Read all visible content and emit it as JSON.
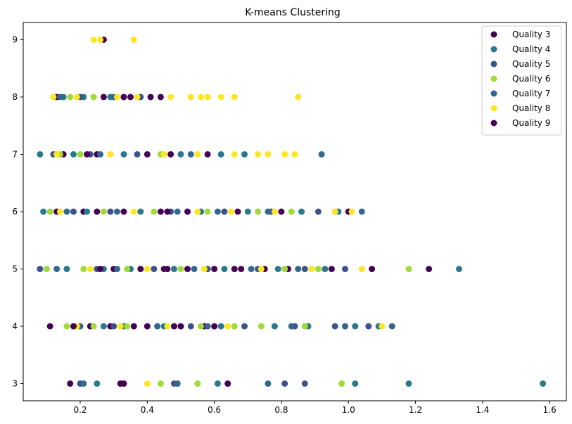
{
  "chart_data": {
    "type": "scatter",
    "title": "K-means Clustering",
    "xlabel": "",
    "ylabel": "",
    "xlim": [
      0.03,
      1.65
    ],
    "ylim": [
      2.7,
      9.3
    ],
    "x_ticks": [
      0.2,
      0.4,
      0.6,
      0.8,
      1.0,
      1.2,
      1.4,
      1.6
    ],
    "y_ticks": [
      3,
      4,
      5,
      6,
      7,
      8,
      9
    ],
    "grid": false,
    "legend_position": "top-right",
    "series": [
      {
        "name": "Quality 3",
        "color": "#440154",
        "points": [
          {
            "x": 0.17,
            "y": 3
          },
          {
            "x": 0.32,
            "y": 3
          },
          {
            "x": 0.33,
            "y": 3
          },
          {
            "x": 0.64,
            "y": 3
          },
          {
            "x": 0.11,
            "y": 4
          },
          {
            "x": 0.23,
            "y": 4
          },
          {
            "x": 0.29,
            "y": 4
          },
          {
            "x": 0.36,
            "y": 4
          },
          {
            "x": 0.4,
            "y": 4
          },
          {
            "x": 0.5,
            "y": 4
          },
          {
            "x": 0.57,
            "y": 4
          },
          {
            "x": 0.6,
            "y": 4
          },
          {
            "x": 0.3,
            "y": 5
          },
          {
            "x": 0.38,
            "y": 5
          },
          {
            "x": 0.45,
            "y": 5
          },
          {
            "x": 0.52,
            "y": 5
          },
          {
            "x": 0.6,
            "y": 5
          },
          {
            "x": 0.68,
            "y": 5
          },
          {
            "x": 0.75,
            "y": 5
          },
          {
            "x": 0.82,
            "y": 5
          },
          {
            "x": 0.95,
            "y": 5
          },
          {
            "x": 1.07,
            "y": 5
          },
          {
            "x": 1.24,
            "y": 5
          },
          {
            "x": 0.13,
            "y": 6
          },
          {
            "x": 0.21,
            "y": 6
          },
          {
            "x": 0.33,
            "y": 6
          },
          {
            "x": 0.44,
            "y": 6
          },
          {
            "x": 0.52,
            "y": 6
          },
          {
            "x": 0.67,
            "y": 6
          },
          {
            "x": 0.8,
            "y": 6
          },
          {
            "x": 1.0,
            "y": 6
          },
          {
            "x": 0.15,
            "y": 7
          },
          {
            "x": 0.25,
            "y": 7
          },
          {
            "x": 0.4,
            "y": 7
          },
          {
            "x": 0.47,
            "y": 7
          },
          {
            "x": 0.58,
            "y": 7
          },
          {
            "x": 0.13,
            "y": 8
          },
          {
            "x": 0.27,
            "y": 8
          },
          {
            "x": 0.35,
            "y": 8
          },
          {
            "x": 0.41,
            "y": 8
          },
          {
            "x": 0.44,
            "y": 8
          },
          {
            "x": 0.27,
            "y": 9
          }
        ]
      },
      {
        "name": "Quality 4",
        "color": "#2a788e",
        "points": [
          {
            "x": 0.25,
            "y": 3
          },
          {
            "x": 0.61,
            "y": 3
          },
          {
            "x": 1.02,
            "y": 3
          },
          {
            "x": 1.18,
            "y": 3
          },
          {
            "x": 1.58,
            "y": 3
          },
          {
            "x": 0.27,
            "y": 4
          },
          {
            "x": 0.33,
            "y": 4
          },
          {
            "x": 0.45,
            "y": 4
          },
          {
            "x": 0.62,
            "y": 4
          },
          {
            "x": 0.78,
            "y": 4
          },
          {
            "x": 0.88,
            "y": 4
          },
          {
            "x": 1.02,
            "y": 4
          },
          {
            "x": 1.09,
            "y": 4
          },
          {
            "x": 0.16,
            "y": 5
          },
          {
            "x": 0.27,
            "y": 5
          },
          {
            "x": 0.35,
            "y": 5
          },
          {
            "x": 0.48,
            "y": 5
          },
          {
            "x": 0.63,
            "y": 5
          },
          {
            "x": 0.79,
            "y": 5
          },
          {
            "x": 0.93,
            "y": 5
          },
          {
            "x": 1.33,
            "y": 5
          },
          {
            "x": 0.09,
            "y": 6
          },
          {
            "x": 0.22,
            "y": 6
          },
          {
            "x": 0.38,
            "y": 6
          },
          {
            "x": 0.56,
            "y": 6
          },
          {
            "x": 0.7,
            "y": 6
          },
          {
            "x": 0.86,
            "y": 6
          },
          {
            "x": 0.97,
            "y": 6
          },
          {
            "x": 0.08,
            "y": 7
          },
          {
            "x": 0.18,
            "y": 7
          },
          {
            "x": 0.33,
            "y": 7
          },
          {
            "x": 0.5,
            "y": 7
          },
          {
            "x": 0.62,
            "y": 7
          },
          {
            "x": 0.69,
            "y": 7
          },
          {
            "x": 0.15,
            "y": 8
          },
          {
            "x": 0.21,
            "y": 8
          },
          {
            "x": 0.29,
            "y": 8
          }
        ]
      },
      {
        "name": "Quality 5",
        "color": "#3b528b",
        "points": [
          {
            "x": 0.2,
            "y": 3
          },
          {
            "x": 0.48,
            "y": 3
          },
          {
            "x": 0.81,
            "y": 3
          },
          {
            "x": 0.87,
            "y": 3
          },
          {
            "x": 0.3,
            "y": 4
          },
          {
            "x": 0.53,
            "y": 4
          },
          {
            "x": 0.69,
            "y": 4
          },
          {
            "x": 0.84,
            "y": 4
          },
          {
            "x": 0.96,
            "y": 4
          },
          {
            "x": 1.06,
            "y": 4
          },
          {
            "x": 0.08,
            "y": 5
          },
          {
            "x": 0.25,
            "y": 5
          },
          {
            "x": 0.42,
            "y": 5
          },
          {
            "x": 0.58,
            "y": 5
          },
          {
            "x": 0.73,
            "y": 5
          },
          {
            "x": 0.87,
            "y": 5
          },
          {
            "x": 0.99,
            "y": 5
          },
          {
            "x": 0.18,
            "y": 6
          },
          {
            "x": 0.29,
            "y": 6
          },
          {
            "x": 0.47,
            "y": 6
          },
          {
            "x": 0.63,
            "y": 6
          },
          {
            "x": 0.77,
            "y": 6
          },
          {
            "x": 0.91,
            "y": 6
          },
          {
            "x": 0.12,
            "y": 7
          },
          {
            "x": 0.23,
            "y": 7
          },
          {
            "x": 0.37,
            "y": 7
          },
          {
            "x": 0.2,
            "y": 8
          },
          {
            "x": 0.38,
            "y": 8
          }
        ]
      },
      {
        "name": "Quality 6",
        "color": "#a0da39",
        "points": [
          {
            "x": 0.44,
            "y": 3
          },
          {
            "x": 0.55,
            "y": 3
          },
          {
            "x": 0.98,
            "y": 3
          },
          {
            "x": 0.16,
            "y": 4
          },
          {
            "x": 0.2,
            "y": 4
          },
          {
            "x": 0.24,
            "y": 4
          },
          {
            "x": 0.34,
            "y": 4
          },
          {
            "x": 0.56,
            "y": 4
          },
          {
            "x": 0.66,
            "y": 4
          },
          {
            "x": 0.74,
            "y": 4
          },
          {
            "x": 0.87,
            "y": 4
          },
          {
            "x": 0.1,
            "y": 5
          },
          {
            "x": 0.21,
            "y": 5
          },
          {
            "x": 0.34,
            "y": 5
          },
          {
            "x": 0.5,
            "y": 5
          },
          {
            "x": 0.66,
            "y": 5
          },
          {
            "x": 0.81,
            "y": 5
          },
          {
            "x": 0.91,
            "y": 5
          },
          {
            "x": 1.18,
            "y": 5
          },
          {
            "x": 0.11,
            "y": 6
          },
          {
            "x": 0.27,
            "y": 6
          },
          {
            "x": 0.42,
            "y": 6
          },
          {
            "x": 0.58,
            "y": 6
          },
          {
            "x": 0.73,
            "y": 6
          },
          {
            "x": 0.83,
            "y": 6
          },
          {
            "x": 0.14,
            "y": 7
          },
          {
            "x": 0.2,
            "y": 7
          },
          {
            "x": 0.44,
            "y": 7
          },
          {
            "x": 0.17,
            "y": 8
          },
          {
            "x": 0.24,
            "y": 8
          }
        ]
      },
      {
        "name": "Quality 7",
        "color": "#31688e",
        "points": [
          {
            "x": 0.21,
            "y": 3
          },
          {
            "x": 0.49,
            "y": 3
          },
          {
            "x": 0.76,
            "y": 3
          },
          {
            "x": 0.2,
            "y": 4
          },
          {
            "x": 0.43,
            "y": 4
          },
          {
            "x": 0.58,
            "y": 4
          },
          {
            "x": 0.83,
            "y": 4
          },
          {
            "x": 0.99,
            "y": 4
          },
          {
            "x": 1.13,
            "y": 4
          },
          {
            "x": 0.13,
            "y": 5
          },
          {
            "x": 0.31,
            "y": 5
          },
          {
            "x": 0.54,
            "y": 5
          },
          {
            "x": 0.71,
            "y": 5
          },
          {
            "x": 0.85,
            "y": 5
          },
          {
            "x": 0.16,
            "y": 6
          },
          {
            "x": 0.31,
            "y": 6
          },
          {
            "x": 0.49,
            "y": 6
          },
          {
            "x": 0.61,
            "y": 6
          },
          {
            "x": 0.76,
            "y": 6
          },
          {
            "x": 1.04,
            "y": 6
          },
          {
            "x": 0.26,
            "y": 7
          },
          {
            "x": 0.53,
            "y": 7
          },
          {
            "x": 0.92,
            "y": 7
          },
          {
            "x": 0.14,
            "y": 8
          },
          {
            "x": 0.3,
            "y": 8
          }
        ]
      },
      {
        "name": "Quality 8",
        "color": "#fde725",
        "points": [
          {
            "x": 0.4,
            "y": 3
          },
          {
            "x": 0.19,
            "y": 4
          },
          {
            "x": 0.32,
            "y": 4
          },
          {
            "x": 0.46,
            "y": 4
          },
          {
            "x": 0.64,
            "y": 4
          },
          {
            "x": 1.1,
            "y": 4
          },
          {
            "x": 0.23,
            "y": 5
          },
          {
            "x": 0.4,
            "y": 5
          },
          {
            "x": 0.57,
            "y": 5
          },
          {
            "x": 0.74,
            "y": 5
          },
          {
            "x": 0.89,
            "y": 5
          },
          {
            "x": 1.04,
            "y": 5
          },
          {
            "x": 0.14,
            "y": 6
          },
          {
            "x": 0.36,
            "y": 6
          },
          {
            "x": 0.55,
            "y": 6
          },
          {
            "x": 0.65,
            "y": 6
          },
          {
            "x": 0.78,
            "y": 6
          },
          {
            "x": 0.96,
            "y": 6
          },
          {
            "x": 1.01,
            "y": 6
          },
          {
            "x": 0.13,
            "y": 7
          },
          {
            "x": 0.29,
            "y": 7
          },
          {
            "x": 0.45,
            "y": 7
          },
          {
            "x": 0.55,
            "y": 7
          },
          {
            "x": 0.66,
            "y": 7
          },
          {
            "x": 0.73,
            "y": 7
          },
          {
            "x": 0.76,
            "y": 7
          },
          {
            "x": 0.81,
            "y": 7
          },
          {
            "x": 0.84,
            "y": 7
          },
          {
            "x": 0.12,
            "y": 8
          },
          {
            "x": 0.19,
            "y": 8
          },
          {
            "x": 0.31,
            "y": 8
          },
          {
            "x": 0.37,
            "y": 8
          },
          {
            "x": 0.47,
            "y": 8
          },
          {
            "x": 0.53,
            "y": 8
          },
          {
            "x": 0.56,
            "y": 8
          },
          {
            "x": 0.58,
            "y": 8
          },
          {
            "x": 0.62,
            "y": 8
          },
          {
            "x": 0.66,
            "y": 8
          },
          {
            "x": 0.85,
            "y": 8
          },
          {
            "x": 0.24,
            "y": 9
          },
          {
            "x": 0.26,
            "y": 9
          },
          {
            "x": 0.36,
            "y": 9
          }
        ]
      },
      {
        "name": "Quality 9",
        "color": "#440154",
        "points": [
          {
            "x": 0.18,
            "y": 4
          },
          {
            "x": 0.48,
            "y": 4
          },
          {
            "x": 0.26,
            "y": 5
          },
          {
            "x": 0.46,
            "y": 5
          },
          {
            "x": 0.66,
            "y": 5
          },
          {
            "x": 0.25,
            "y": 6
          },
          {
            "x": 0.46,
            "y": 6
          },
          {
            "x": 0.22,
            "y": 7
          },
          {
            "x": 0.33,
            "y": 8
          }
        ]
      }
    ]
  }
}
